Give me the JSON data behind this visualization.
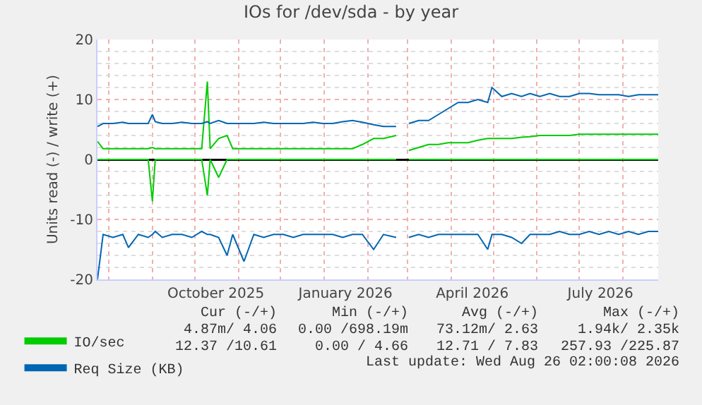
{
  "chart_data": {
    "type": "line",
    "title": "IOs for /dev/sda - by year",
    "ylabel": "Units read (-) / write (+)",
    "x": [
      "2025-07-24",
      "2025-07-28",
      "2025-08-04",
      "2025-08-11",
      "2025-08-15",
      "2025-08-22",
      "2025-08-29",
      "2025-09-01",
      "2025-09-03",
      "2025-09-08",
      "2025-09-15",
      "2025-09-22",
      "2025-09-29",
      "2025-10-06",
      "2025-10-10",
      "2025-10-12",
      "2025-10-18",
      "2025-10-24",
      "2025-10-28",
      "2025-11-05",
      "2025-11-12",
      "2025-11-19",
      "2025-11-26",
      "2025-12-03",
      "2025-12-10",
      "2025-12-17",
      "2025-12-24",
      "2025-12-31",
      "2026-01-07",
      "2026-01-14",
      "2026-01-21",
      "2026-01-28",
      "2026-02-05",
      "2026-02-12",
      "2026-02-21",
      "2026-02-25",
      "2026-03-02",
      "2026-03-09",
      "2026-03-16",
      "2026-03-23",
      "2026-03-30",
      "2026-04-06",
      "2026-04-13",
      "2026-04-20",
      "2026-04-27",
      "2026-04-30",
      "2026-05-07",
      "2026-05-14",
      "2026-05-21",
      "2026-05-27",
      "2026-06-03",
      "2026-06-10",
      "2026-06-17",
      "2026-06-24",
      "2026-07-01",
      "2026-07-08",
      "2026-07-15",
      "2026-07-22",
      "2026-07-29",
      "2026-08-05",
      "2026-08-12",
      "2026-08-19",
      "2026-08-26"
    ],
    "series": [
      {
        "name": "IO/sec",
        "color": "#00cc00",
        "values": [
          3,
          1.8,
          1.8,
          1.8,
          1.8,
          1.8,
          1.8,
          2,
          1.8,
          1.8,
          1.8,
          1.8,
          1.8,
          1.8,
          13,
          1.8,
          3.5,
          4,
          1.8,
          1.8,
          1.8,
          1.8,
          1.8,
          1.8,
          1.8,
          1.8,
          1.8,
          1.8,
          1.8,
          1.8,
          1.8,
          2.5,
          3.5,
          3.5,
          4,
          null,
          1.5,
          2,
          2.5,
          2.5,
          2.8,
          2.8,
          2.8,
          3.2,
          3.5,
          3.5,
          3.5,
          3.5,
          3.7,
          3.8,
          4,
          4,
          4,
          4,
          4.2,
          4.2,
          4.2,
          4.2,
          4.2,
          4.2,
          4.2,
          4.2,
          4.2
        ]
      },
      {
        "color": "#00cc00",
        "values": [
          0,
          0,
          0,
          0,
          0,
          0,
          0,
          -7,
          0,
          0,
          0,
          0,
          0,
          0,
          -6,
          0,
          -3,
          0,
          0,
          0,
          0,
          0,
          0,
          0,
          0,
          0,
          0,
          0,
          0,
          0,
          0,
          0,
          0,
          0,
          0,
          null,
          0,
          0,
          0,
          0,
          0,
          0,
          0,
          0,
          0,
          0,
          0,
          0,
          0,
          0,
          0,
          0,
          0,
          0,
          0,
          0,
          0,
          0,
          0,
          0,
          0,
          0,
          0
        ]
      },
      {
        "name": "Req Size (KB)",
        "color": "#0066b3",
        "values": [
          5.5,
          6,
          6,
          6.2,
          6,
          6,
          6,
          7.5,
          6.3,
          6,
          6,
          6.2,
          6,
          6,
          6.3,
          6,
          6.5,
          6,
          6,
          6,
          6,
          6.2,
          6,
          6,
          6,
          6,
          6.2,
          6,
          6,
          6.3,
          6.5,
          6.2,
          5.8,
          5.5,
          5.5,
          null,
          6,
          6.5,
          6.5,
          7.5,
          8.5,
          9.5,
          9.5,
          10,
          9.5,
          12,
          10.5,
          11,
          10.5,
          11,
          10.5,
          11,
          10.5,
          10.5,
          11,
          11,
          10.8,
          10.8,
          10.8,
          10.5,
          10.8,
          10.8,
          10.8
        ]
      },
      {
        "color": "#0066b3",
        "values": [
          -20,
          -12.5,
          -13,
          -12.5,
          -14.7,
          -12.5,
          -13,
          -12.5,
          -12,
          -13,
          -12.5,
          -12.5,
          -13,
          -12,
          -12.5,
          -12.5,
          -13,
          -16,
          -12.5,
          -17,
          -12.5,
          -13,
          -12.5,
          -12.5,
          -13,
          -12.5,
          -12.5,
          -12.5,
          -12.5,
          -13,
          -12.5,
          -12.5,
          -15,
          -12.5,
          -13,
          null,
          -13,
          -12.5,
          -13,
          -12.5,
          -12.5,
          -12.5,
          -12.5,
          -12.5,
          -15,
          -12.5,
          -12.5,
          -13,
          -14,
          -12.5,
          -12.5,
          -12.5,
          -12,
          -12.5,
          -12.5,
          -12,
          -12.5,
          -12,
          -12.5,
          -12,
          -12.5,
          -12,
          -12
        ]
      }
    ],
    "xlim": [
      "2025-07-24",
      "2026-08-26"
    ],
    "xticks": [
      {
        "value": "2025-10-16",
        "label": "October 2025"
      },
      {
        "value": "2026-01-16",
        "label": "January 2026"
      },
      {
        "value": "2026-04-16",
        "label": "April 2026"
      },
      {
        "value": "2026-07-16",
        "label": "July 2026"
      }
    ],
    "ylim": [
      -20,
      20
    ],
    "yticks": [
      -20,
      -10,
      0,
      10,
      20
    ],
    "grid": true,
    "legend": "bottom left",
    "annotations": [
      "Cur (-/+)",
      "Min (-/+)",
      "Avg (-/+)",
      "Max (-/+)",
      "4.87m/ 4.06",
      "0.00 /698.19m",
      "73.12m/ 2.63",
      "1.94k/ 2.35k",
      "12.37 /10.61",
      "0.00 / 4.66",
      "12.71 / 7.83",
      "257.93 /225.87",
      "Last update: Wed Aug 26 02:00:08 2026"
    ]
  }
}
